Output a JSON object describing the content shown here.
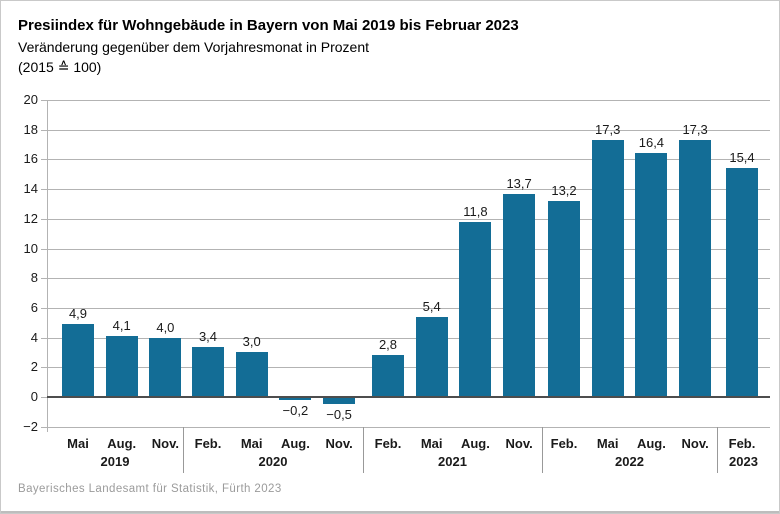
{
  "chart_data": {
    "type": "bar",
    "title": "Presiindex für Wohngebäude in Bayern von Mai 2019 bis Februar 2023",
    "subtitle": "Veränderung gegenüber dem Vorjahresmonat in Prozent",
    "base_note": "(2015 ≙ 100)",
    "xlabel": "",
    "ylabel": "",
    "ylim": [
      -2,
      20
    ],
    "ytick_step": 2,
    "ytick_labels": [
      "20",
      "18",
      "16",
      "14",
      "12",
      "10",
      "8",
      "6",
      "4",
      "2",
      "0",
      "−2"
    ],
    "grid": true,
    "legend_position": "none",
    "groups": [
      {
        "year": "2019",
        "months": [
          "Mai",
          "Aug.",
          "Nov."
        ],
        "values": [
          4.9,
          4.1,
          4.0
        ],
        "labels": [
          "4,9",
          "4,1",
          "4,0"
        ]
      },
      {
        "year": "2020",
        "months": [
          "Feb.",
          "Mai",
          "Aug.",
          "Nov."
        ],
        "values": [
          3.4,
          3.0,
          -0.2,
          -0.5
        ],
        "labels": [
          "3,4",
          "3,0",
          "−0,2",
          "−0,5"
        ]
      },
      {
        "year": "2021",
        "months": [
          "Feb.",
          "Mai",
          "Aug.",
          "Nov."
        ],
        "values": [
          2.8,
          5.4,
          11.8,
          13.7
        ],
        "labels": [
          "2,8",
          "5,4",
          "11,8",
          "13,7"
        ]
      },
      {
        "year": "2022",
        "months": [
          "Feb.",
          "Mai",
          "Aug.",
          "Nov."
        ],
        "values": [
          13.2,
          17.3,
          16.4,
          17.3
        ],
        "labels": [
          "13,2",
          "17,3",
          "16,4",
          "17,3"
        ]
      },
      {
        "year": "2023",
        "months": [
          "Feb."
        ],
        "values": [
          15.4
        ],
        "labels": [
          "15,4"
        ]
      }
    ]
  },
  "footer": {
    "source": "Bayerisches Landesamt für Statistik, Fürth 2023"
  },
  "colors": {
    "bar": "#136d96",
    "gridline": "#b3b3b3",
    "axis": "#b3b3b3",
    "zero_line": "#4d4d4d",
    "year_separator": "#999999",
    "title_text": "#000000",
    "footer_text": "#9b9b9b"
  }
}
